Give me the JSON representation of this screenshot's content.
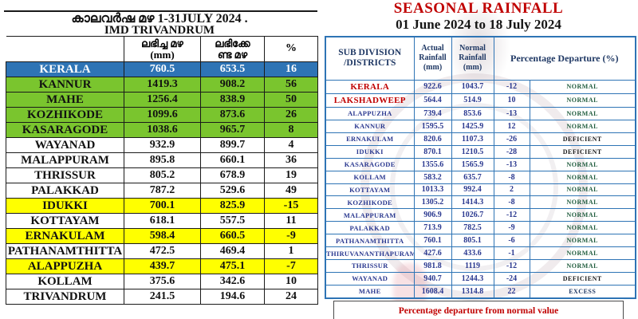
{
  "chart_data": [
    {
      "type": "table",
      "title": "കാലവർഷ മഴ  1-31JULY 2024 .",
      "subtitle": "IMD TRIVANDRUM",
      "columns": [
        "",
        "ലഭിച്ച മഴ (mm)",
        "ലഭിക്കേണ്ട മഴ",
        "%"
      ],
      "header": {
        "received_line1": "ലഭിച്ച മഴ",
        "received_line2": "(mm)",
        "expected_line1": "ലഭിക്കേ",
        "expected_line2": "ണ്ട മഴ",
        "percent": "%"
      },
      "rows": [
        {
          "name": "KERALA",
          "received": "760.5",
          "expected": "653.5",
          "pct": "16",
          "highlight": "state"
        },
        {
          "name": "KANNUR",
          "received": "1419.3",
          "expected": "908.2",
          "pct": "56",
          "highlight": "green"
        },
        {
          "name": "MAHE",
          "received": "1256.4",
          "expected": "838.9",
          "pct": "50",
          "highlight": "green"
        },
        {
          "name": "KOZHIKODE",
          "received": "1099.6",
          "expected": "873.6",
          "pct": "26",
          "highlight": "green"
        },
        {
          "name": "KASARAGODE",
          "received": "1038.6",
          "expected": "965.7",
          "pct": "8",
          "highlight": "green"
        },
        {
          "name": "WAYANAD",
          "received": "932.9",
          "expected": "899.7",
          "pct": "4",
          "highlight": "plain"
        },
        {
          "name": "MALAPPURAM",
          "received": "895.8",
          "expected": "660.1",
          "pct": "36",
          "highlight": "plain"
        },
        {
          "name": "THRISSUR",
          "received": "805.2",
          "expected": "678.9",
          "pct": "19",
          "highlight": "plain"
        },
        {
          "name": "PALAKKAD",
          "received": "787.2",
          "expected": "529.6",
          "pct": "49",
          "highlight": "plain"
        },
        {
          "name": "IDUKKI",
          "received": "700.1",
          "expected": "825.9",
          "pct": "-15",
          "highlight": "yellow"
        },
        {
          "name": "KOTTAYAM",
          "received": "618.1",
          "expected": "557.5",
          "pct": "11",
          "highlight": "plain"
        },
        {
          "name": "ERNAKULAM",
          "received": "598.4",
          "expected": "660.5",
          "pct": "-9",
          "highlight": "yellow"
        },
        {
          "name": "PATHANAMTHITTA",
          "received": "472.5",
          "expected": "469.4",
          "pct": "1",
          "highlight": "plain"
        },
        {
          "name": "ALAPPUZHA",
          "received": "439.7",
          "expected": "475.1",
          "pct": "-7",
          "highlight": "yellow"
        },
        {
          "name": "KOLLAM",
          "received": "375.6",
          "expected": "342.6",
          "pct": "10",
          "highlight": "plain"
        },
        {
          "name": "TRIVANDRUM",
          "received": "241.5",
          "expected": "194.6",
          "pct": "24",
          "highlight": "plain"
        }
      ]
    },
    {
      "type": "table",
      "title": "SEASONAL RAINFALL",
      "subtitle": "01 June 2024 to 18 July 2024",
      "columns": [
        "SUB DIVISION /DISTRICTS",
        "Actual Rainfall (mm)",
        "Normal Rainfall (mm)",
        "Percentage Departure (%)"
      ],
      "header": {
        "district_line1": "SUB DIVISION",
        "district_line2": "/DISTRICTS",
        "actual": "Actual Rainfall (mm)",
        "normal": "Normal Rainfall (mm)",
        "departure": "Percentage Departure (%)"
      },
      "rows": [
        {
          "district": "KERALA",
          "actual": "922.6",
          "normal": "1043.7",
          "departure": "-12",
          "category": "NORMAL",
          "emphasis": "red"
        },
        {
          "district": "LAKSHADWEEP",
          "actual": "564.4",
          "normal": "514.9",
          "departure": "10",
          "category": "NORMAL",
          "emphasis": "red"
        },
        {
          "district": "ALAPPUZHA",
          "actual": "739.4",
          "normal": "853.6",
          "departure": "-13",
          "category": "NORMAL",
          "emphasis": "blue"
        },
        {
          "district": "KANNUR",
          "actual": "1595.5",
          "normal": "1425.9",
          "departure": "12",
          "category": "NORMAL",
          "emphasis": "blue"
        },
        {
          "district": "ERNAKULAM",
          "actual": "820.6",
          "normal": "1107.3",
          "departure": "-26",
          "category": "DEFICIENT",
          "emphasis": "blue"
        },
        {
          "district": "IDUKKI",
          "actual": "870.1",
          "normal": "1210.5",
          "departure": "-28",
          "category": "DEFICIENT",
          "emphasis": "blue"
        },
        {
          "district": "KASARAGODE",
          "actual": "1355.6",
          "normal": "1565.9",
          "departure": "-13",
          "category": "NORMAL",
          "emphasis": "blue"
        },
        {
          "district": "KOLLAM",
          "actual": "583.2",
          "normal": "635.7",
          "departure": "-8",
          "category": "NORMAL",
          "emphasis": "blue"
        },
        {
          "district": "KOTTAYAM",
          "actual": "1013.3",
          "normal": "992.4",
          "departure": "2",
          "category": "NORMAL",
          "emphasis": "blue"
        },
        {
          "district": "KOZHIKODE",
          "actual": "1305.2",
          "normal": "1414.3",
          "departure": "-8",
          "category": "NORMAL",
          "emphasis": "blue"
        },
        {
          "district": "MALAPPURAM",
          "actual": "906.9",
          "normal": "1026.7",
          "departure": "-12",
          "category": "NORMAL",
          "emphasis": "blue"
        },
        {
          "district": "PALAKKAD",
          "actual": "713.9",
          "normal": "782.5",
          "departure": "-9",
          "category": "NORMAL",
          "emphasis": "blue"
        },
        {
          "district": "PATHANAMTHITTA",
          "actual": "760.1",
          "normal": "805.1",
          "departure": "-6",
          "category": "NORMAL",
          "emphasis": "blue"
        },
        {
          "district": "THIRUVANANTHAPURAM",
          "actual": "427.6",
          "normal": "433.6",
          "departure": "-1",
          "category": "NORMAL",
          "emphasis": "blue"
        },
        {
          "district": "THRISSUR",
          "actual": "981.8",
          "normal": "1119",
          "departure": "-12",
          "category": "NORMAL",
          "emphasis": "blue"
        },
        {
          "district": "WAYANAD",
          "actual": "940.7",
          "normal": "1244.3",
          "departure": "-24",
          "category": "DEFICIENT",
          "emphasis": "blue"
        },
        {
          "district": "MAHE",
          "actual": "1608.4",
          "normal": "1314.8",
          "departure": "22",
          "category": "EXCESS",
          "emphasis": "blue"
        }
      ],
      "footnote": "Percentage departure from normal value"
    }
  ],
  "colors": {
    "state_row_bg": "#2E74B5",
    "state_row_text": "#FFFFFF",
    "green_row_bg": "#7AC52E",
    "yellow_row_bg": "#FFFF00",
    "left_border": "#1A1A1A",
    "right_border": "#2E74B5",
    "right_header_text": "#1F3864",
    "district_blue": "#2B3990",
    "highlight_red": "#C00000",
    "normal_bg": "#C6EFCE",
    "normal_text": "#1F5C3D",
    "deficient_bg": "#FFC000",
    "deficient_text": "#1A1A1A",
    "excess_bg": "#D6E4F0",
    "excess_text": "#1F3864",
    "footnote_red": "#C00000"
  }
}
